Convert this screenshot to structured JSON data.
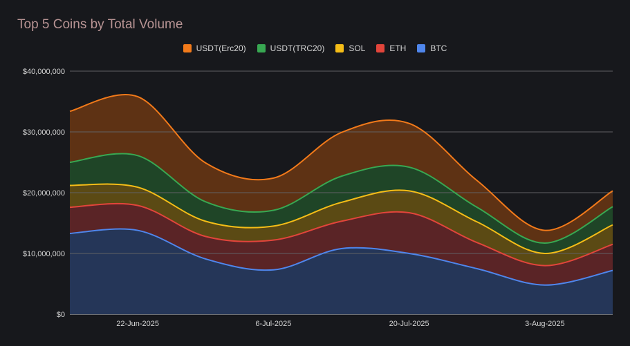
{
  "chart_data": {
    "type": "area",
    "stacked": true,
    "title": "Top 5 Coins by Total Volume",
    "xlabel": "",
    "ylabel": "",
    "ylim": [
      0,
      40000000
    ],
    "y_ticks": [
      "$0",
      "$10,000,000",
      "$20,000,000",
      "$30,000,000",
      "$40,000,000"
    ],
    "x_tick_labels": [
      "22-Jun-2025",
      "6-Jul-2025",
      "20-Jul-2025",
      "3-Aug-2025"
    ],
    "x_tick_indices": [
      1,
      3,
      5,
      7
    ],
    "legend_position": "top-center",
    "grid": true,
    "legend_order": [
      "USDT(Erc20)",
      "USDT(TRC20)",
      "SOL",
      "ETH",
      "BTC"
    ],
    "series": [
      {
        "name": "BTC",
        "color": "#4f86ec",
        "fill": "#253658",
        "values": [
          13300000,
          13800000,
          9100000,
          7300000,
          10800000,
          10000000,
          7500000,
          4800000,
          7200000
        ]
      },
      {
        "name": "ETH",
        "color": "#e2453b",
        "fill": "#5a2426",
        "values": [
          4300000,
          4100000,
          3700000,
          4900000,
          4500000,
          6700000,
          4300000,
          3200000,
          4300000
        ]
      },
      {
        "name": "SOL",
        "color": "#f5bd17",
        "fill": "#5b4a14",
        "values": [
          3600000,
          3000000,
          2500000,
          2300000,
          3100000,
          3600000,
          3400000,
          2000000,
          3200000
        ]
      },
      {
        "name": "USDT(TRC20)",
        "color": "#38a852",
        "fill": "#1f4527",
        "values": [
          3800000,
          5200000,
          3200000,
          2600000,
          4300000,
          3900000,
          2400000,
          1700000,
          3000000
        ]
      },
      {
        "name": "USDT(Erc20)",
        "color": "#f27a1a",
        "fill": "#5e3214",
        "values": [
          8400000,
          9700000,
          6400000,
          5300000,
          7200000,
          7200000,
          4400000,
          2100000,
          2600000
        ]
      }
    ]
  }
}
